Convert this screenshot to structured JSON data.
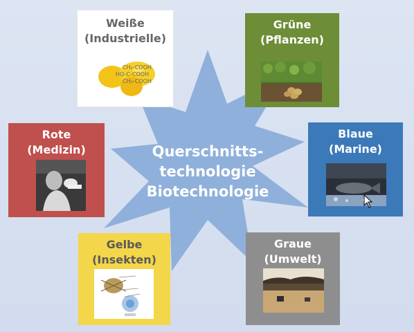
{
  "center": {
    "line1": "Querschnitts-",
    "line2": "technologie",
    "line3": "Biotechnologie"
  },
  "boxes": {
    "white": {
      "line1": "Weiße",
      "line2": "(Industrielle)",
      "color": "#ffffff",
      "text_color": "#666666"
    },
    "green": {
      "line1": "Grüne",
      "line2": "(Pflanzen)",
      "color": "#6d8d36"
    },
    "red": {
      "line1": "Rote",
      "line2": "(Medizin)",
      "color": "#c0504d"
    },
    "blue": {
      "line1": "Blaue",
      "line2": "(Marine)",
      "color": "#3c79b9"
    },
    "yellow": {
      "line1": "Gelbe",
      "line2": "(Insekten)",
      "color": "#f3d64a",
      "text_color": "#5a5a5a"
    },
    "gray": {
      "line1": "Graue",
      "line2": "(Umwelt)",
      "color": "#8e8e8e"
    }
  },
  "lemon_labels": {
    "l1": "CH₂-COOH",
    "l2": "HO-C-COOH",
    "l3": "CH₂-COOH"
  },
  "star_color": "#8fb0da"
}
